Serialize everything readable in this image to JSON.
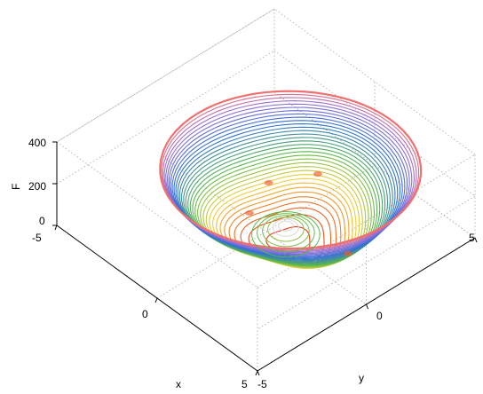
{
  "chart_data": {
    "type": "contour3d",
    "title": "",
    "zlabel": "F",
    "xlabel": "x",
    "ylabel": "y",
    "xlim": [
      -5,
      5
    ],
    "ylim": [
      -5,
      5
    ],
    "zlim": [
      0,
      400
    ],
    "x_ticks": [
      "-5",
      "0",
      "5"
    ],
    "y_ticks": [
      "-5",
      "0",
      "5"
    ],
    "z_ticks": [
      "0",
      "200",
      "400"
    ],
    "grid": true,
    "colormap": "jet",
    "colors": {
      "low": "#e8401c",
      "mid_low": "#f2d23a",
      "mid": "#59b94a",
      "mid_high": "#2f6fd6",
      "high": "#9a6fd8",
      "rim": "#f07070"
    },
    "surface_levels": {
      "min_z": 0,
      "max_z": 340,
      "rim_radius": 4.2,
      "central_bump_height": 60
    }
  }
}
